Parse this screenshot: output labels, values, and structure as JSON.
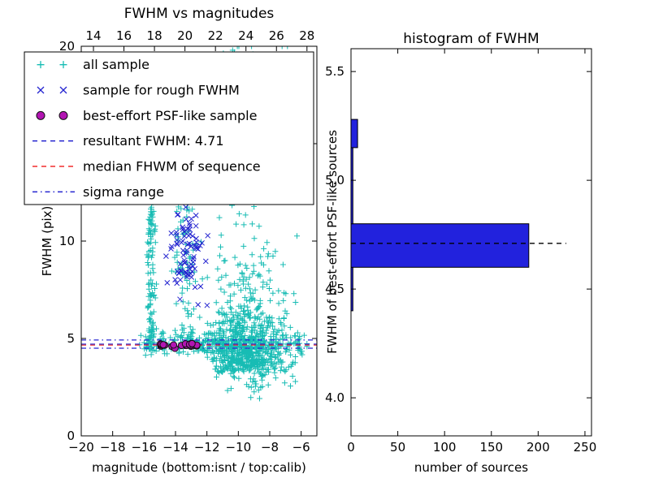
{
  "figure": {
    "background": "#ffffff"
  },
  "chart_data": [
    {
      "id": "fwhm-vs-mag",
      "type": "scatter",
      "title": "FWHM vs magnitudes",
      "xlabel": "magnitude (bottom:isnt / top:calib)",
      "ylabel": "FWHM (pix)",
      "xlim": [
        -20,
        -5
      ],
      "xlim_top": [
        13.2,
        28.65
      ],
      "ylim": [
        0,
        20
      ],
      "grid": false,
      "xticks_bottom": [
        {
          "v": -20,
          "label": "−20"
        },
        {
          "v": -18,
          "label": "−18"
        },
        {
          "v": -16,
          "label": "−16"
        },
        {
          "v": -14,
          "label": "−14"
        },
        {
          "v": -12,
          "label": "−12"
        },
        {
          "v": -10,
          "label": "−10"
        },
        {
          "v": -8,
          "label": "−8"
        },
        {
          "v": -6,
          "label": "−6"
        }
      ],
      "xticks_top": [
        {
          "v": 14,
          "label": "14"
        },
        {
          "v": 16,
          "label": "16"
        },
        {
          "v": 18,
          "label": "18"
        },
        {
          "v": 20,
          "label": "20"
        },
        {
          "v": 22,
          "label": "22"
        },
        {
          "v": 24,
          "label": "24"
        },
        {
          "v": 26,
          "label": "26"
        },
        {
          "v": 28,
          "label": "28"
        }
      ],
      "yticks": [
        {
          "v": 0,
          "label": "0"
        },
        {
          "v": 5,
          "label": "5"
        },
        {
          "v": 10,
          "label": "10"
        },
        {
          "v": 15,
          "label": "15"
        },
        {
          "v": 20,
          "label": "20"
        }
      ],
      "legend": {
        "position": "upper left",
        "entries": [
          {
            "label": "all sample",
            "type": "marker",
            "marker": "plus",
            "color": "#17bcb4"
          },
          {
            "label": "sample for rough FWHM",
            "type": "marker",
            "marker": "x",
            "color": "#2525d0"
          },
          {
            "label": "best-effort PSF-like sample",
            "type": "marker",
            "marker": "circle",
            "color": "#b215b2"
          },
          {
            "label": "resultant FWHM: 4.71",
            "type": "line",
            "style": "dashed",
            "color": "#2525d0"
          },
          {
            "label": "median FHWM of sequence",
            "type": "line",
            "style": "dashed",
            "color": "#f22b2b"
          },
          {
            "label": "sigma range",
            "type": "line",
            "style": "dashdot",
            "color": "#2525d0"
          }
        ]
      },
      "hlines": [
        {
          "name": "resultant-fwhm-line",
          "y": 4.71,
          "style": "dashed",
          "color": "#2525d0"
        },
        {
          "name": "median-fwhm-line",
          "y": 4.66,
          "style": "dashed",
          "color": "#f22b2b"
        },
        {
          "name": "sigma-upper-line",
          "y": 4.92,
          "style": "dashdot",
          "color": "#2525d0"
        },
        {
          "name": "sigma-lower-line",
          "y": 4.5,
          "style": "dashdot",
          "color": "#2525d0"
        }
      ],
      "series_clusters": [
        {
          "series": "all sample",
          "marker": "plus",
          "color": "#17bcb4",
          "seed": 11,
          "n": 750,
          "x": {
            "type": "gauss",
            "mu": -9.6,
            "sd": 1.15,
            "clip": [
              -12.8,
              -5.3
            ]
          },
          "y": {
            "type": "expshift",
            "base": 3.1,
            "mu": 0.45,
            "sd": 0.85,
            "clip": [
              1.6,
              20
            ]
          }
        },
        {
          "series": "all sample",
          "marker": "plus",
          "color": "#17bcb4",
          "seed": 12,
          "n": 240,
          "x": {
            "type": "uniform",
            "a": -16.3,
            "b": -5.6
          },
          "y": {
            "type": "gauss",
            "mu": 4.75,
            "sd": 0.28,
            "clip": [
              3.9,
              5.7
            ]
          }
        },
        {
          "series": "all sample",
          "marker": "plus",
          "color": "#17bcb4",
          "seed": 13,
          "n": 120,
          "x": {
            "type": "gauss",
            "mu": -15.55,
            "sd": 0.13
          },
          "y": {
            "type": "uniform",
            "a": 4.3,
            "b": 12.3
          }
        },
        {
          "series": "all sample",
          "marker": "plus",
          "color": "#17bcb4",
          "seed": 14,
          "n": 70,
          "x": {
            "type": "gauss",
            "mu": -13.45,
            "sd": 0.35
          },
          "y": {
            "type": "uniform",
            "a": 5.0,
            "b": 12.0
          }
        },
        {
          "series": "all sample",
          "marker": "plus",
          "color": "#17bcb4",
          "seed": 15,
          "n": 65,
          "x": {
            "type": "gauss",
            "mu": -10.3,
            "sd": 1.5,
            "clip": [
              -14.5,
              -6.2
            ]
          },
          "y": {
            "type": "uniform",
            "a": 12.0,
            "b": 19.9
          }
        },
        {
          "series": "all sample",
          "marker": "plus",
          "color": "#17bcb4",
          "seed": 16,
          "n": 45,
          "x": {
            "type": "gauss",
            "mu": -8.8,
            "sd": 1.2,
            "clip": [
              -11.5,
              -6.0
            ]
          },
          "y": {
            "type": "gauss",
            "mu": 2.9,
            "sd": 0.5,
            "clip": [
              1.7,
              3.9
            ]
          }
        },
        {
          "series": "all sample",
          "marker": "plus",
          "color": "#17bcb4",
          "seed": 17,
          "n": 10,
          "x": {
            "type": "uniform",
            "a": -7.6,
            "b": -5.8
          },
          "y": {
            "type": "uniform",
            "a": 2.5,
            "b": 9.0
          }
        },
        {
          "series": "sample for rough FWHM",
          "marker": "x",
          "color": "#2525d0",
          "seed": 21,
          "n": 85,
          "x": {
            "type": "gauss",
            "mu": -13.35,
            "sd": 0.55,
            "clip": [
              -15.3,
              -11.9
            ]
          },
          "y": {
            "type": "gauss",
            "mu": 9.6,
            "sd": 1.35,
            "clip": [
              6.7,
              12.4
            ]
          }
        },
        {
          "series": "sample for rough FWHM",
          "marker": "x",
          "color": "#2525d0",
          "seed": 22,
          "n": 10,
          "x": {
            "type": "gauss",
            "mu": -14.2,
            "sd": 0.5
          },
          "y": {
            "type": "uniform",
            "a": 12.5,
            "b": 19.6
          }
        },
        {
          "series": "best-effort PSF-like sample",
          "marker": "circle",
          "color": "#b215b2",
          "edge": "#111111",
          "seed": 31,
          "n": 26,
          "x": {
            "type": "uniform",
            "a": -15.05,
            "b": -12.55
          },
          "y": {
            "type": "gauss",
            "mu": 4.66,
            "sd": 0.07
          }
        }
      ]
    },
    {
      "id": "fwhm-hist",
      "type": "bar",
      "orientation": "horizontal",
      "title": "histogram of FWHM",
      "xlabel": "number of sources",
      "ylabel": "FWHM of best-effort PSF-like sources",
      "xlim": [
        0,
        257
      ],
      "ylim": [
        3.825,
        5.605
      ],
      "grid": false,
      "xticks": [
        {
          "v": 0,
          "label": "0"
        },
        {
          "v": 50,
          "label": "50"
        },
        {
          "v": 100,
          "label": "100"
        },
        {
          "v": 150,
          "label": "150"
        },
        {
          "v": 200,
          "label": "200"
        },
        {
          "v": 250,
          "label": "250"
        }
      ],
      "yticks": [
        {
          "v": 4.0,
          "label": "4.0"
        },
        {
          "v": 4.5,
          "label": "4.5"
        },
        {
          "v": 5.0,
          "label": "5.0"
        },
        {
          "v": 5.5,
          "label": "5.5"
        }
      ],
      "bar_color": "#2222dd",
      "bar_edge": "#000000",
      "bars": [
        {
          "from": 4.4,
          "to": 4.6,
          "count": 2
        },
        {
          "from": 4.6,
          "to": 4.8,
          "count": 190
        },
        {
          "from": 4.8,
          "to": 5.15,
          "count": 2
        },
        {
          "from": 5.15,
          "to": 5.28,
          "count": 7
        }
      ],
      "median_line": {
        "value": 4.71,
        "x_start": 0,
        "x_end": 230,
        "style": "dashed",
        "color": "#000000"
      }
    }
  ]
}
